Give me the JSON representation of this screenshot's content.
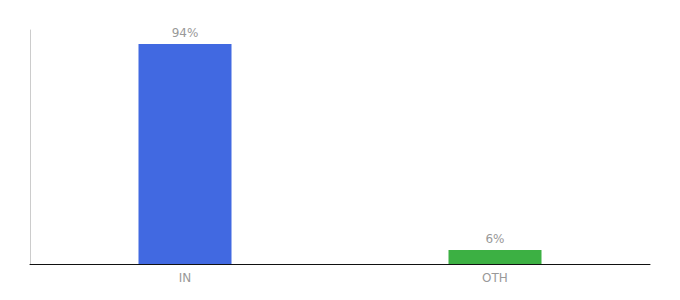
{
  "chart_data": {
    "type": "bar",
    "categories": [
      "IN",
      "OTH"
    ],
    "values": [
      94,
      6
    ],
    "value_labels": [
      "94%",
      "6%"
    ],
    "colors": [
      "#4169e1",
      "#3cb043"
    ],
    "ylim": [
      0,
      100
    ],
    "grid": false,
    "data_labels": true,
    "tick_labels": "x"
  }
}
